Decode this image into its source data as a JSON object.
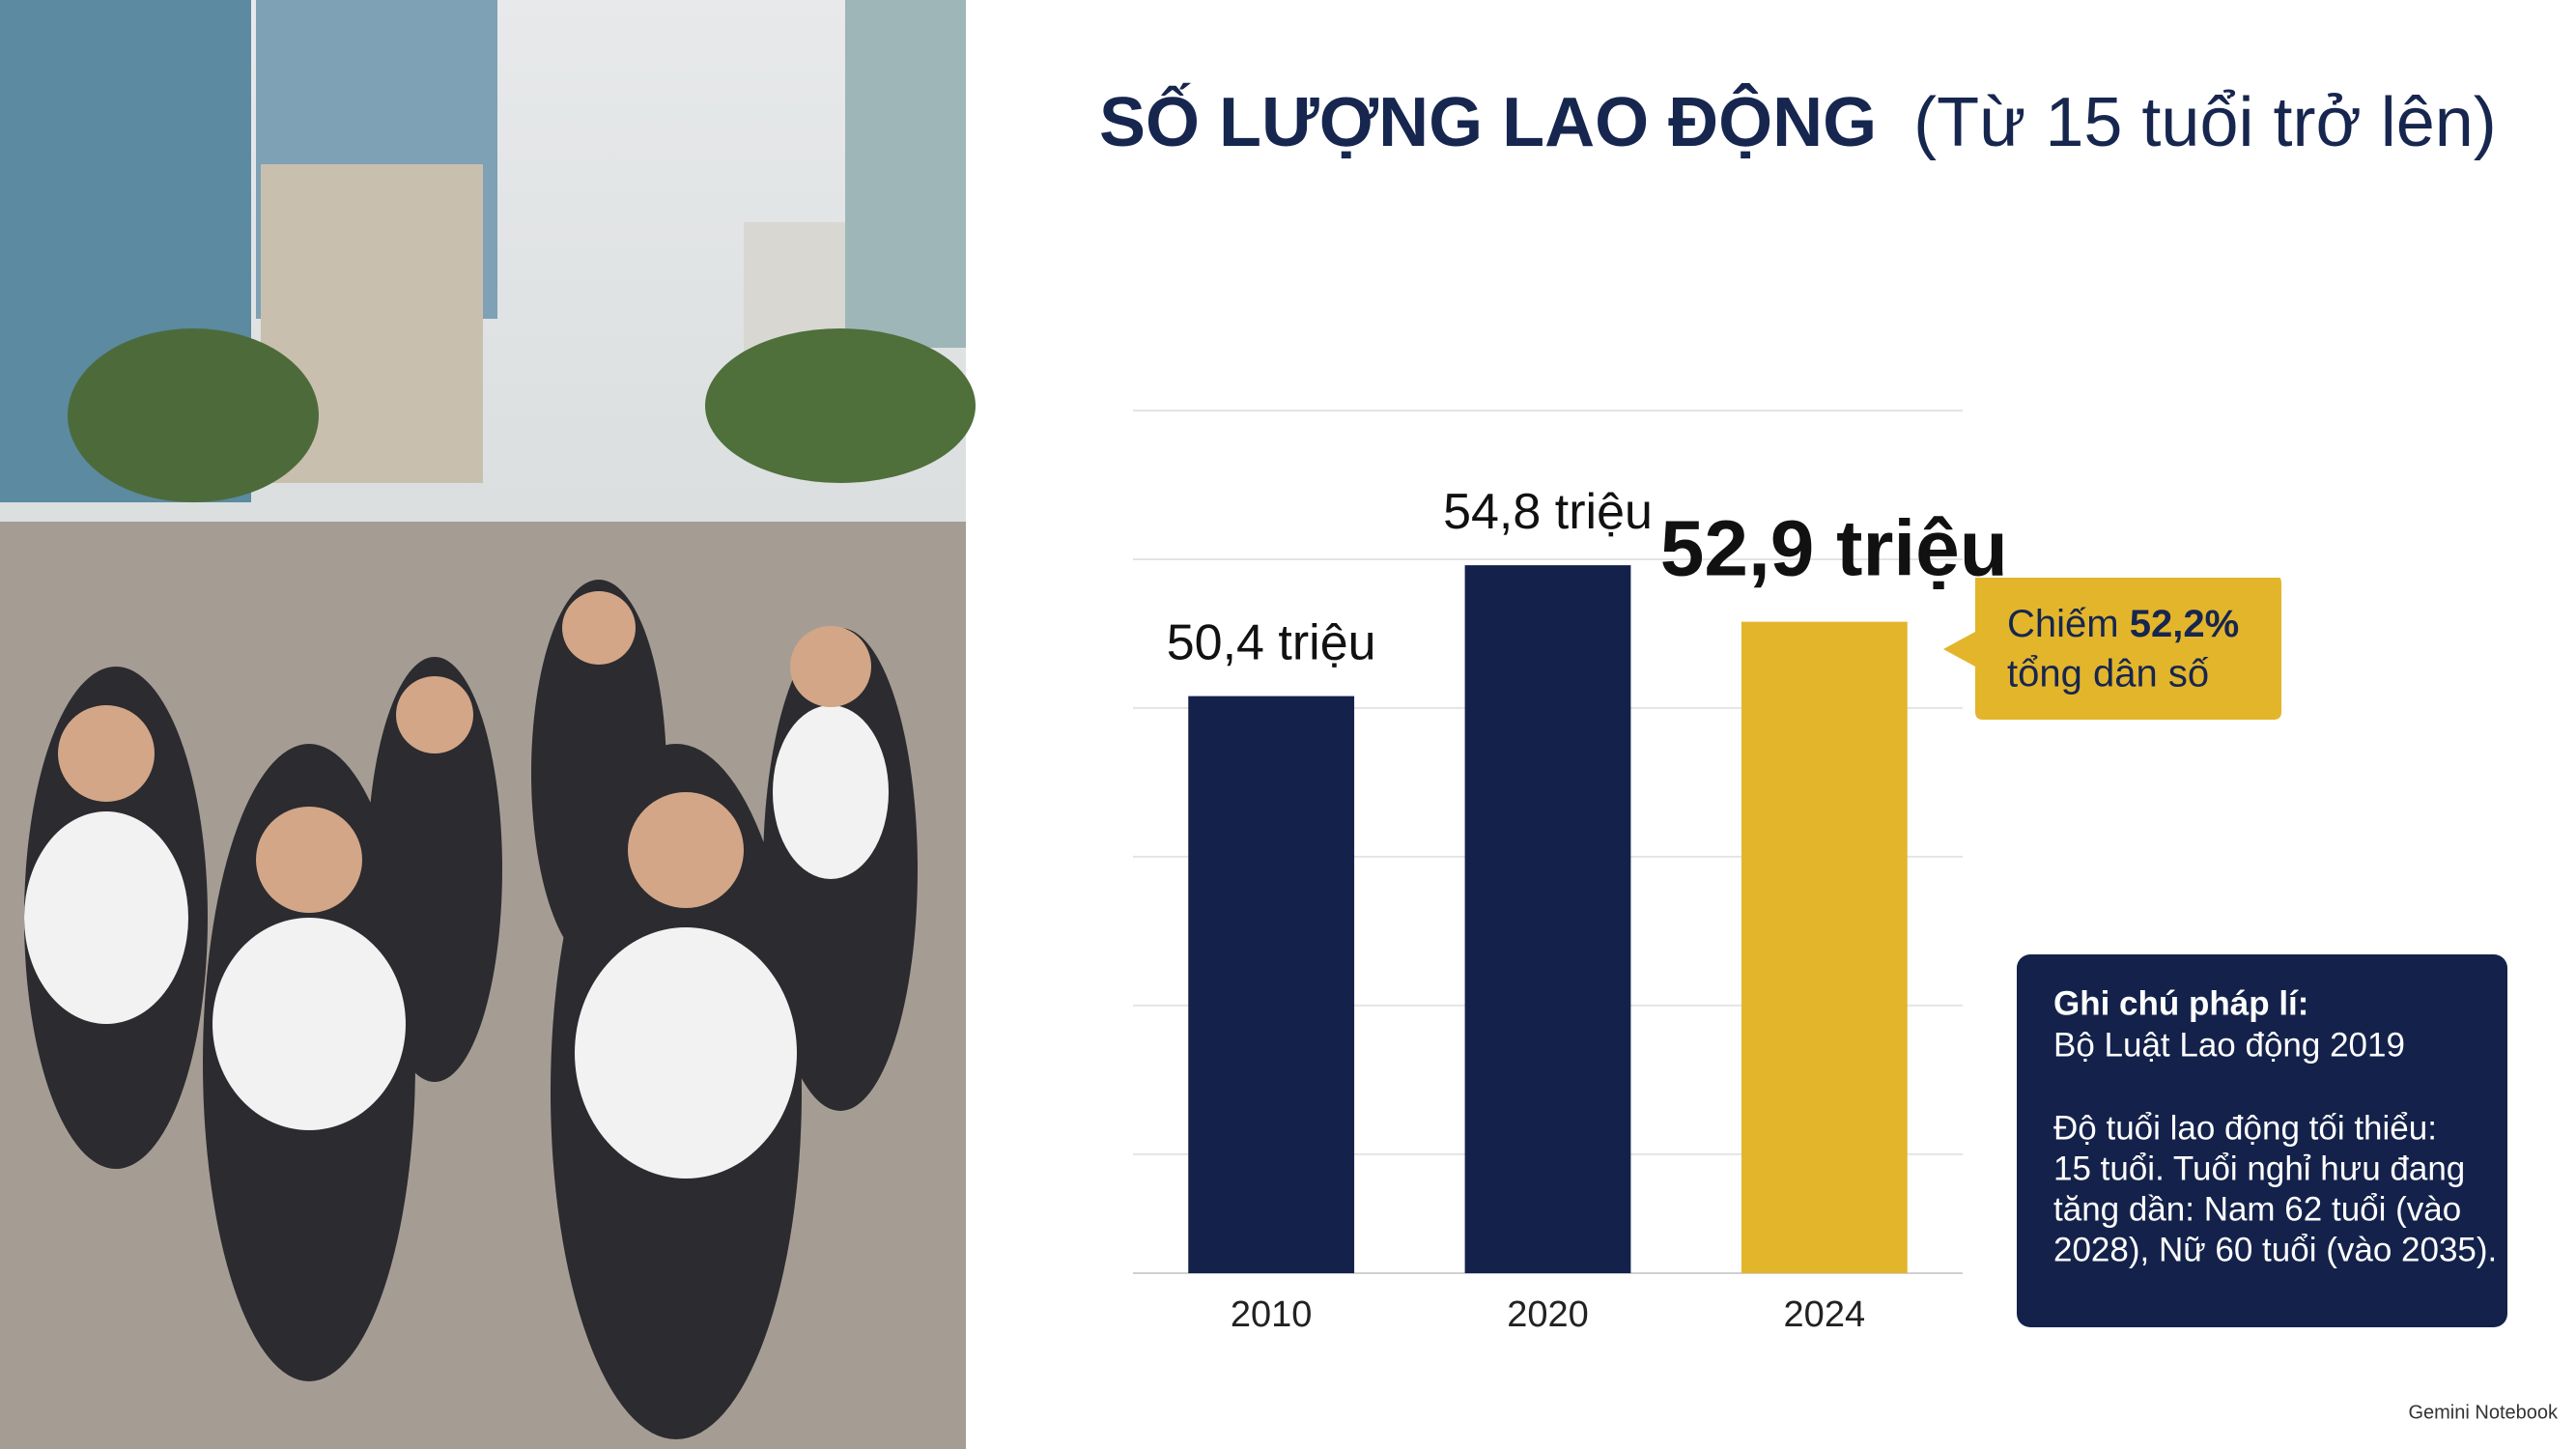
{
  "chart_data": {
    "type": "bar",
    "title": "SỐ LƯỢNG LAO ĐỘNG",
    "subtitle": "(Từ 15 tuổi trở lên)",
    "categories": [
      "2010",
      "2020",
      "2024"
    ],
    "values": [
      50.4,
      54.8,
      52.9
    ],
    "value_labels": [
      "50,4 triệu",
      "54,8 triệu",
      "52,9 triệu"
    ],
    "colors": [
      "#14224b",
      "#14224b",
      "#e3b52b"
    ],
    "ylim": [
      31,
      60
    ],
    "yticks": [
      35,
      40,
      45,
      50,
      55,
      60
    ],
    "grid": true,
    "callout": {
      "prefix": "Chiếm",
      "highlight": "52,2%",
      "suffix": "tổng dân số"
    },
    "note": {
      "title": "Ghi chú pháp lí:",
      "law": "Bộ Luật Lao động 2019",
      "lines": [
        "Độ tuổi lao động tối thiểu:",
        "15 tuổi. Tuổi nghỉ hưu đang",
        "tăng dần: Nam 62 tuổi (vào",
        "2028), Nữ 60 tuổi (vào 2035)."
      ]
    },
    "footer": "Gemini Notebook"
  }
}
